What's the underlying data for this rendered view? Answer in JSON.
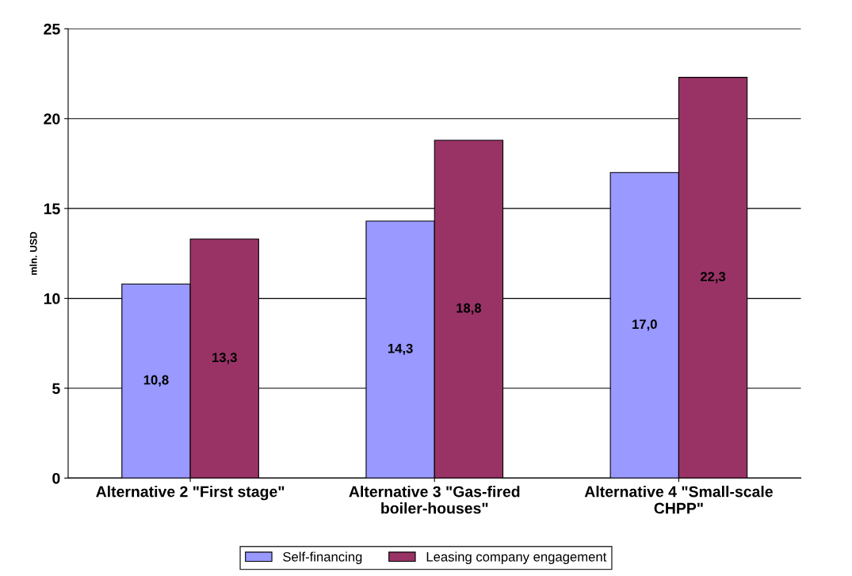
{
  "chart_data": {
    "type": "bar",
    "ylabel": "mln. USD",
    "categories": [
      "Alternative 2 \"First stage\"",
      "Alternative 3 \"Gas-fired\nboiler-houses\"",
      "Alternative 4 \"Small-scale\nCHPP\""
    ],
    "series": [
      {
        "name": "Self-financing",
        "color": "#9999ff",
        "values": [
          10.8,
          14.3,
          17.0
        ],
        "value_labels": [
          "10,8",
          "14,3",
          "17,0"
        ]
      },
      {
        "name": "Leasing company engagement",
        "color": "#993366",
        "values": [
          13.3,
          18.8,
          22.3
        ],
        "value_labels": [
          "13,3",
          "18,8",
          "22,3"
        ]
      }
    ],
    "ylim": [
      0,
      25
    ],
    "yticks": [
      0,
      5,
      10,
      15,
      20,
      25
    ],
    "grid": "y",
    "legend": "bottom"
  }
}
